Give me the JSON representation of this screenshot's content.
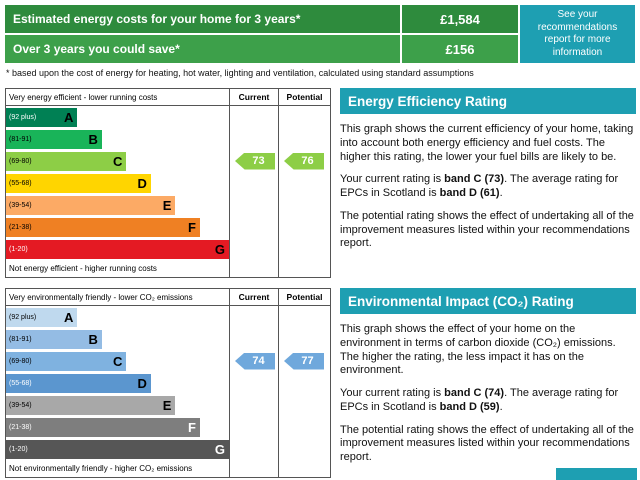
{
  "theme": {
    "teal": "#1E9FB2",
    "row_green_1": "#2E8B3D",
    "row_green_2": "#3DA04A",
    "border": "#555555"
  },
  "top": {
    "rows": [
      {
        "label": "Estimated energy costs for your home for 3 years*",
        "value": "£1,584"
      },
      {
        "label": "Over 3 years you could save*",
        "value": "£156"
      }
    ],
    "info_box": "See your recommendations report for more information",
    "footnote": "* based upon the cost of energy for heating, hot water, lighting and ventilation, calculated using standard assumptions"
  },
  "chart_data": [
    {
      "type": "bar",
      "subtype": "epc-rating-scale",
      "title": "Energy Efficiency Rating",
      "top_caption": "Very energy efficient - lower running costs",
      "bottom_caption": "Not energy efficient - higher running costs",
      "columns": [
        "Current",
        "Potential"
      ],
      "bands": [
        {
          "letter": "A",
          "range": "(92 plus)",
          "color": "#008054",
          "range_color": "#ffffff",
          "letter_color": "#000000",
          "width_pct": 32
        },
        {
          "letter": "B",
          "range": "(81-91)",
          "color": "#19b459",
          "range_color": "#000000",
          "letter_color": "#000000",
          "width_pct": 43
        },
        {
          "letter": "C",
          "range": "(69-80)",
          "color": "#8dce46",
          "range_color": "#000000",
          "letter_color": "#000000",
          "width_pct": 54
        },
        {
          "letter": "D",
          "range": "(55-68)",
          "color": "#ffd500",
          "range_color": "#000000",
          "letter_color": "#000000",
          "width_pct": 65
        },
        {
          "letter": "E",
          "range": "(39-54)",
          "color": "#fcaa65",
          "range_color": "#000000",
          "letter_color": "#000000",
          "width_pct": 76
        },
        {
          "letter": "F",
          "range": "(21-38)",
          "color": "#ef8023",
          "range_color": "#000000",
          "letter_color": "#000000",
          "width_pct": 87
        },
        {
          "letter": "G",
          "range": "(1-20)",
          "color": "#e41a23",
          "range_color": "#ffffff",
          "letter_color": "#000000",
          "width_pct": 100
        }
      ],
      "current": {
        "value": 73,
        "band_index": 2,
        "color": "#8dce46"
      },
      "potential": {
        "value": 76,
        "band_index": 2,
        "color": "#8dce46"
      }
    },
    {
      "type": "bar",
      "subtype": "epc-rating-scale",
      "title": "Environmental Impact (CO₂) Rating",
      "top_caption": "Very environmentally friendly - lower CO₂ emissions",
      "bottom_caption": "Not environmentally friendly - higher CO₂ emissions",
      "columns": [
        "Current",
        "Potential"
      ],
      "bands": [
        {
          "letter": "A",
          "range": "(92 plus)",
          "color": "#bfd9ee",
          "range_color": "#000000",
          "letter_color": "#000000",
          "width_pct": 32
        },
        {
          "letter": "B",
          "range": "(81-91)",
          "color": "#94bce4",
          "range_color": "#000000",
          "letter_color": "#000000",
          "width_pct": 43
        },
        {
          "letter": "C",
          "range": "(69-80)",
          "color": "#7fb2e0",
          "range_color": "#000000",
          "letter_color": "#000000",
          "width_pct": 54
        },
        {
          "letter": "D",
          "range": "(55-68)",
          "color": "#5b96cf",
          "range_color": "#ffffff",
          "letter_color": "#000000",
          "width_pct": 65
        },
        {
          "letter": "E",
          "range": "(39-54)",
          "color": "#a8a8a8",
          "range_color": "#000000",
          "letter_color": "#000000",
          "width_pct": 76
        },
        {
          "letter": "F",
          "range": "(21-38)",
          "color": "#7e7e7e",
          "range_color": "#ffffff",
          "letter_color": "#ffffff",
          "width_pct": 87
        },
        {
          "letter": "G",
          "range": "(1-20)",
          "color": "#565656",
          "range_color": "#ffffff",
          "letter_color": "#ffffff",
          "width_pct": 100
        }
      ],
      "current": {
        "value": 74,
        "band_index": 2,
        "color": "#6fa8dc"
      },
      "potential": {
        "value": 77,
        "band_index": 2,
        "color": "#6fa8dc"
      }
    }
  ],
  "panels": [
    {
      "title": "Energy Efficiency Rating",
      "paragraphs": [
        [
          {
            "t": "This graph shows the current efficiency of your home, taking into account both energy efficiency and fuel costs. The higher this rating, the lower your fuel bills are likely to be."
          }
        ],
        [
          {
            "t": "Your current rating is "
          },
          {
            "t": "band C (73)",
            "b": true
          },
          {
            "t": ". The average rating for EPCs in Scotland is "
          },
          {
            "t": "band D (61)",
            "b": true
          },
          {
            "t": "."
          }
        ],
        [
          {
            "t": "The potential rating shows the effect of undertaking all of the improvement measures listed within your recommendations report."
          }
        ]
      ]
    },
    {
      "title": "Environmental Impact (CO₂) Rating",
      "paragraphs": [
        [
          {
            "t": "This graph shows the effect of your home on the environment in terms of carbon dioxide (CO₂) emissions. The higher the rating, the less impact it has on the environment."
          }
        ],
        [
          {
            "t": "Your current rating is "
          },
          {
            "t": "band C (74)",
            "b": true
          },
          {
            "t": ". The average rating for EPCs in Scotland is "
          },
          {
            "t": "band D (59)",
            "b": true
          },
          {
            "t": "."
          }
        ],
        [
          {
            "t": "The potential rating shows the effect of undertaking all of the improvement measures listed within your recommendations report."
          }
        ]
      ]
    }
  ]
}
